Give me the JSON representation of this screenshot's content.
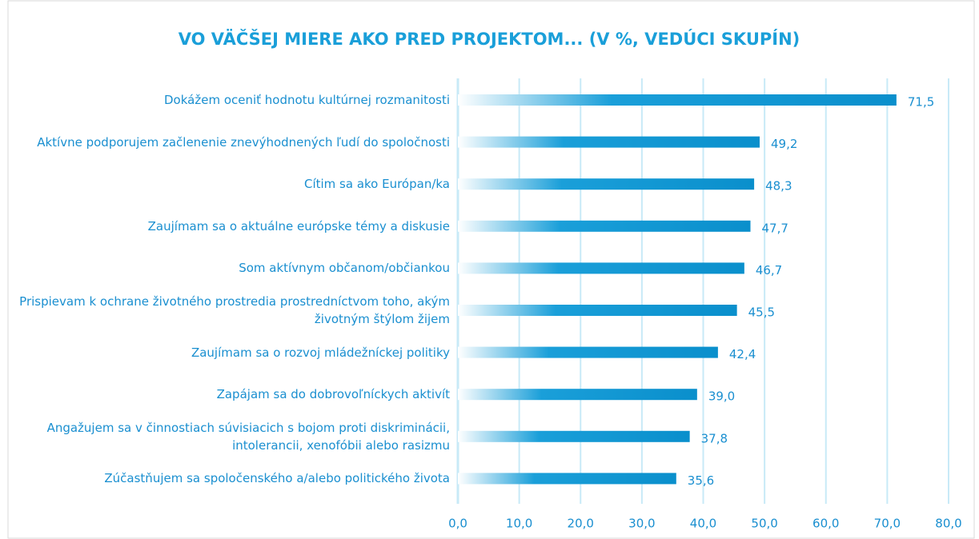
{
  "chart_data": {
    "type": "bar",
    "orientation": "horizontal",
    "title": "VO VÄČŠEJ MIERE AKO PRED PROJEKTOM... (V %, VEDÚCI SKUPÍN)",
    "categories": [
      "Dokážem oceniť hodnotu kultúrnej rozmanitosti",
      "Aktívne podporujem začlenenie znevýhodnených ľudí do spoločnosti",
      "Cítim sa ako Európan/ka",
      "Zaujímam sa o aktuálne európske témy a diskusie",
      "Som aktívnym občanom/občiankou",
      "Prispievam k ochrane životného prostredia prostredníctvom toho, akým životným štýlom žijem",
      "Zaujímam sa o rozvoj mládežníckej politiky",
      "Zapájam sa do dobrovoľníckych aktivít",
      "Angažujem sa v činnostiach súvisiacich s bojom proti diskriminácii, intolerancii, xenofóbii alebo rasizmu",
      "Zúčastňujem sa spoločenského a/alebo politického života"
    ],
    "values": [
      71.5,
      49.2,
      48.3,
      47.7,
      46.7,
      45.5,
      42.4,
      39.0,
      37.8,
      35.6
    ],
    "value_labels": [
      "71,5",
      "49,2",
      "48,3",
      "47,7",
      "46,7",
      "45,5",
      "42,4",
      "39,0",
      "37,8",
      "35,6"
    ],
    "color": "#1a9fd9",
    "xlim": [
      0,
      80
    ],
    "xticks": [
      {
        "value": 0,
        "label": "0,0"
      },
      {
        "value": 10,
        "label": "10,0"
      },
      {
        "value": 20,
        "label": "20,0"
      },
      {
        "value": 30,
        "label": "30,0"
      },
      {
        "value": 40,
        "label": "40,0"
      },
      {
        "value": 50,
        "label": "50,0"
      },
      {
        "value": 60,
        "label": "60,0"
      },
      {
        "value": 70,
        "label": "70,0"
      },
      {
        "value": 80,
        "label": "80,0"
      }
    ],
    "grid": true
  }
}
